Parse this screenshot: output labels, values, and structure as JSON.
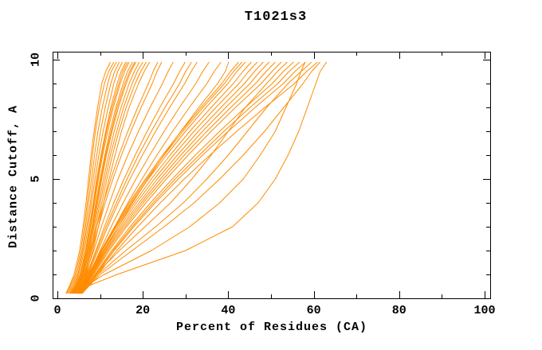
{
  "chart_data": {
    "type": "line",
    "title": "T1021s3",
    "xlabel": "Percent of Residues (CA)",
    "ylabel": "Distance Cutoff, A",
    "xlim": [
      0,
      100
    ],
    "ylim": [
      0,
      10
    ],
    "x_major_ticks": [
      0,
      20,
      40,
      60,
      80,
      100
    ],
    "x_minor_ticks": [
      10,
      30,
      50,
      70,
      90
    ],
    "x_tick_labels": [
      "0",
      "20",
      "40",
      "60",
      "80",
      "100"
    ],
    "y_major_ticks": [
      0,
      5,
      10
    ],
    "y_minor_ticks": [
      1,
      2,
      3,
      4,
      6,
      7,
      8,
      9
    ],
    "y_tick_labels": [
      "0",
      "5",
      "10"
    ],
    "grid": false,
    "legend_position": "none",
    "background_color": "#FFFFFF",
    "axis_color": "#000000",
    "curve_color": "#FF8C00",
    "cutoffs": [
      0.2,
      0.5,
      1,
      2,
      3,
      4,
      5,
      6,
      7,
      8,
      9,
      9.5,
      9.9
    ],
    "series": [
      {
        "values": [
          2.2,
          3.0,
          4.2,
          5.5,
          6.3,
          7.0,
          7.6,
          8.2,
          8.9,
          9.8,
          11.0,
          12.0,
          13.2
        ]
      },
      {
        "values": [
          2.5,
          3.3,
          4.5,
          5.8,
          6.6,
          7.3,
          8.0,
          8.7,
          9.5,
          10.5,
          11.8,
          12.6,
          13.8
        ]
      },
      {
        "values": [
          2.8,
          3.6,
          4.8,
          6.0,
          6.9,
          7.7,
          8.4,
          9.2,
          10.1,
          11.2,
          12.5,
          13.4,
          14.5
        ]
      },
      {
        "values": [
          3.0,
          3.9,
          5.0,
          6.3,
          7.2,
          8.0,
          8.8,
          9.7,
          10.7,
          11.9,
          13.2,
          14.1,
          15.2
        ]
      },
      {
        "values": [
          3.2,
          4.1,
          5.3,
          6.6,
          7.5,
          8.4,
          9.2,
          10.2,
          11.3,
          12.5,
          14.0,
          14.9,
          16.0
        ]
      },
      {
        "values": [
          3.4,
          4.3,
          5.5,
          6.8,
          7.8,
          8.7,
          9.6,
          10.6,
          11.8,
          13.1,
          14.7,
          15.7,
          16.8
        ]
      },
      {
        "values": [
          3.5,
          4.5,
          5.7,
          7.0,
          8.1,
          9.0,
          10.0,
          11.1,
          12.3,
          13.7,
          15.4,
          16.4,
          17.6
        ]
      },
      {
        "values": [
          3.7,
          4.7,
          5.9,
          7.3,
          8.4,
          9.4,
          10.4,
          11.5,
          12.8,
          14.3,
          16.1,
          17.2,
          18.4
        ]
      },
      {
        "values": [
          3.8,
          4.8,
          6.1,
          7.5,
          8.6,
          9.7,
          10.8,
          12.0,
          13.3,
          14.9,
          16.8,
          18.0,
          19.2
        ]
      },
      {
        "values": [
          4.0,
          5.0,
          6.3,
          7.8,
          8.9,
          10.0,
          11.2,
          12.4,
          13.9,
          15.5,
          17.5,
          18.7,
          20.0
        ]
      },
      {
        "values": [
          4.1,
          5.2,
          6.5,
          8.0,
          9.2,
          10.4,
          11.6,
          12.9,
          14.4,
          16.1,
          18.2,
          19.5,
          20.8
        ]
      },
      {
        "values": [
          2.0,
          2.8,
          3.9,
          5.2,
          6.0,
          6.7,
          7.3,
          7.9,
          8.6,
          9.4,
          10.4,
          11.3,
          12.4
        ]
      },
      {
        "values": [
          4.3,
          5.4,
          6.8,
          8.3,
          9.6,
          10.8,
          12.1,
          13.5,
          15.0,
          16.8,
          19.0,
          20.3,
          21.6
        ]
      },
      {
        "values": [
          3.3,
          4.2,
          5.4,
          6.7,
          7.7,
          8.5,
          9.4,
          10.4,
          11.5,
          12.8,
          14.4,
          15.3,
          16.4
        ]
      },
      {
        "values": [
          3.6,
          4.6,
          5.8,
          7.1,
          8.2,
          9.2,
          10.2,
          11.3,
          12.6,
          14.0,
          15.8,
          16.9,
          18.1
        ]
      },
      {
        "values": [
          3.8,
          4.9,
          6.3,
          8.0,
          9.6,
          11.2,
          13.0,
          15.0,
          17.2,
          19.6,
          22.2,
          23.3,
          24.4
        ]
      },
      {
        "values": [
          4.0,
          5.1,
          6.6,
          8.5,
          10.3,
          12.2,
          14.2,
          16.5,
          19.0,
          21.7,
          24.6,
          25.9,
          27.1
        ]
      },
      {
        "values": [
          4.2,
          5.3,
          6.9,
          9.0,
          11.0,
          13.2,
          15.6,
          18.2,
          21.0,
          24.0,
          27.2,
          28.6,
          29.9
        ]
      },
      {
        "values": [
          4.4,
          5.6,
          7.2,
          9.5,
          11.8,
          14.3,
          17.0,
          19.9,
          23.0,
          26.3,
          29.8,
          31.3,
          32.7
        ]
      },
      {
        "values": [
          4.6,
          5.8,
          7.5,
          10.0,
          12.6,
          15.4,
          18.4,
          21.6,
          25.0,
          28.6,
          32.4,
          34.0,
          35.5
        ]
      },
      {
        "values": [
          4.8,
          6.0,
          7.8,
          10.5,
          13.4,
          16.5,
          19.8,
          23.3,
          27.0,
          30.9,
          35.0,
          36.7,
          38.3
        ]
      },
      {
        "values": [
          5.0,
          6.3,
          8.1,
          11.0,
          14.2,
          17.6,
          21.2,
          24.9,
          28.9,
          33.1,
          37.5,
          39.3,
          40.1
        ]
      },
      {
        "values": [
          3.6,
          4.7,
          6.0,
          7.6,
          9.2,
          10.8,
          12.5,
          14.4,
          16.5,
          18.8,
          21.3,
          22.4,
          23.5
        ]
      },
      {
        "values": [
          4.3,
          5.5,
          7.0,
          9.2,
          11.4,
          13.8,
          16.3,
          19.0,
          22.0,
          25.2,
          28.6,
          30.0,
          31.4
        ]
      },
      {
        "values": [
          4.5,
          5.8,
          7.5,
          10.5,
          13.8,
          17.4,
          21.3,
          25.5,
          30.0,
          34.8,
          39.9,
          42.0,
          44.0
        ]
      },
      {
        "values": [
          4.7,
          6.0,
          7.8,
          11.0,
          14.6,
          18.5,
          22.7,
          27.2,
          32.0,
          37.1,
          42.5,
          44.7,
          46.8
        ]
      },
      {
        "values": [
          4.9,
          6.2,
          8.1,
          11.5,
          15.4,
          19.6,
          24.1,
          28.9,
          34.0,
          39.4,
          45.1,
          47.4,
          49.6
        ]
      },
      {
        "values": [
          5.1,
          6.5,
          8.5,
          12.1,
          16.2,
          20.7,
          25.5,
          30.6,
          36.0,
          41.7,
          47.7,
          50.2,
          52.4
        ]
      },
      {
        "values": [
          5.3,
          6.7,
          8.8,
          12.7,
          17.0,
          21.8,
          26.9,
          32.3,
          38.0,
          44.0,
          50.3,
          52.9,
          55.3
        ]
      },
      {
        "values": [
          5.5,
          7.0,
          9.2,
          13.3,
          17.9,
          22.9,
          28.3,
          34.0,
          40.0,
          46.3,
          52.9,
          55.6,
          58.1
        ]
      },
      {
        "values": [
          5.7,
          7.2,
          9.5,
          13.9,
          18.8,
          24.1,
          29.7,
          35.7,
          42.0,
          48.6,
          55.5,
          58.3,
          60.9
        ]
      },
      {
        "values": [
          4.4,
          5.6,
          7.3,
          10.2,
          13.4,
          16.8,
          20.6,
          24.6,
          29.0,
          33.6,
          38.5,
          40.5,
          42.4
        ]
      },
      {
        "values": [
          4.6,
          5.9,
          7.6,
          10.8,
          14.2,
          18.0,
          22.0,
          26.4,
          31.0,
          36.0,
          41.2,
          43.4,
          45.4
        ]
      },
      {
        "values": [
          4.8,
          6.1,
          8.0,
          11.3,
          15.0,
          19.1,
          23.4,
          28.1,
          33.0,
          38.3,
          43.8,
          46.1,
          48.2
        ]
      },
      {
        "values": [
          5.0,
          6.4,
          8.3,
          11.8,
          15.8,
          20.1,
          24.8,
          29.7,
          35.0,
          40.6,
          46.4,
          48.8,
          51.0
        ]
      },
      {
        "values": [
          5.2,
          6.6,
          9.0,
          14.5,
          20.5,
          26.5,
          31.5,
          36.0,
          40.0,
          44.0,
          49.0,
          51.5,
          53.8
        ]
      },
      {
        "values": [
          5.4,
          6.8,
          9.0,
          13.0,
          17.5,
          22.4,
          27.6,
          33.2,
          39.0,
          45.1,
          51.6,
          54.2,
          56.7
        ]
      },
      {
        "values": [
          5.6,
          7.1,
          9.5,
          16.0,
          23.0,
          29.5,
          35.0,
          40.0,
          44.5,
          49.0,
          54.0,
          57.0,
          59.5
        ]
      },
      {
        "values": [
          4.5,
          5.7,
          7.4,
          10.4,
          13.6,
          17.1,
          20.9,
          25.0,
          29.4,
          34.1,
          39.1,
          41.2,
          43.2
        ]
      },
      {
        "values": [
          5.8,
          7.3,
          10.0,
          17.5,
          25.0,
          32.0,
          38.0,
          43.5,
          48.5,
          53.0,
          57.5,
          59.5,
          61.5
        ]
      },
      {
        "values": [
          5.0,
          7.0,
          14.0,
          30.0,
          41.0,
          47.0,
          51.0,
          54.0,
          56.5,
          58.5,
          60.5,
          61.5,
          63.0
        ]
      },
      {
        "values": [
          4.8,
          6.5,
          11.0,
          22.0,
          31.0,
          38.0,
          43.5,
          47.5,
          51.0,
          53.5,
          56.0,
          57.0,
          58.0
        ]
      }
    ]
  }
}
